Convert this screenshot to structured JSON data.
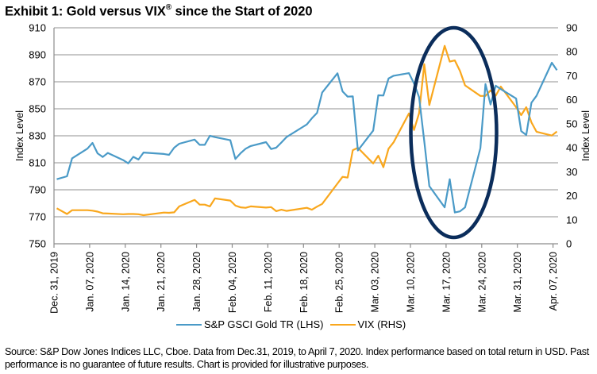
{
  "title": {
    "text": "Exhibit 1: Gold versus VIX",
    "mark": "®",
    "suffix": " since the Start of 2020"
  },
  "footnote": "Source: S&P Dow Jones Indices LLC, Cboe. Data from Dec.31, 2019, to April 7, 2020. Index performance based on total return in USD. Past performance is no guarantee of future results. Chart is provided for illustrative purposes.",
  "annotation": {
    "shape": "ellipse",
    "highlights": "Mar. 12 – Mar. 26, 2020",
    "color": "#0B2D5B"
  },
  "chart_data": {
    "type": "line",
    "title": "Exhibit 1: Gold versus VIX® since the Start of 2020",
    "xlabel": "",
    "ylabel_left": "Index Level",
    "ylabel_right": "Index Level",
    "ylim_left": [
      750,
      910
    ],
    "yticks_left": [
      "910",
      "890",
      "870",
      "850",
      "830",
      "810",
      "790",
      "770",
      "750"
    ],
    "ylim_right": [
      0,
      90
    ],
    "yticks_right": [
      "90",
      "80",
      "70",
      "60",
      "50",
      "40",
      "30",
      "20",
      "10",
      "0"
    ],
    "xtick_labels": [
      "Dec. 31, 2019",
      "Jan. 07, 2020",
      "Jan. 14, 2020",
      "Jan. 21, 2020",
      "Jan. 28, 2020",
      "Feb. 04, 2020",
      "Feb. 11, 2020",
      "Feb. 18, 2020",
      "Feb. 25, 2020",
      "Mar. 03, 2020",
      "Mar. 10, 2020",
      "Mar. 17, 2020",
      "Mar. 24, 2020",
      "Mar. 31, 2020",
      "Apr. 07, 2020"
    ],
    "grid": "horizontal",
    "legend_position": "bottom",
    "x": [
      "2019-12-31",
      "2020-01-02",
      "2020-01-03",
      "2020-01-06",
      "2020-01-07",
      "2020-01-08",
      "2020-01-09",
      "2020-01-10",
      "2020-01-13",
      "2020-01-14",
      "2020-01-15",
      "2020-01-16",
      "2020-01-17",
      "2020-01-21",
      "2020-01-22",
      "2020-01-23",
      "2020-01-24",
      "2020-01-27",
      "2020-01-28",
      "2020-01-29",
      "2020-01-30",
      "2020-01-31",
      "2020-02-03",
      "2020-02-04",
      "2020-02-05",
      "2020-02-06",
      "2020-02-07",
      "2020-02-10",
      "2020-02-11",
      "2020-02-12",
      "2020-02-13",
      "2020-02-14",
      "2020-02-18",
      "2020-02-19",
      "2020-02-20",
      "2020-02-21",
      "2020-02-24",
      "2020-02-25",
      "2020-02-26",
      "2020-02-27",
      "2020-02-28",
      "2020-03-02",
      "2020-03-03",
      "2020-03-04",
      "2020-03-05",
      "2020-03-06",
      "2020-03-09",
      "2020-03-10",
      "2020-03-11",
      "2020-03-12",
      "2020-03-13",
      "2020-03-16",
      "2020-03-17",
      "2020-03-18",
      "2020-03-19",
      "2020-03-20",
      "2020-03-23",
      "2020-03-24",
      "2020-03-25",
      "2020-03-26",
      "2020-03-27",
      "2020-03-30",
      "2020-03-31",
      "2020-04-01",
      "2020-04-02",
      "2020-04-03",
      "2020-04-06",
      "2020-04-07"
    ],
    "series": [
      {
        "name": "S&P GSCI Gold TR (LHS)",
        "axis": "left",
        "color": "#4A9AC7",
        "values": [
          797.8,
          800.0,
          813.3,
          820.5,
          824.7,
          817.0,
          814.3,
          817.3,
          812.0,
          809.6,
          814.4,
          812.4,
          817.6,
          816.5,
          815.9,
          821.2,
          824.1,
          827.2,
          823.3,
          823.3,
          830.0,
          829.0,
          826.7,
          812.8,
          817.0,
          820.4,
          822.4,
          825.3,
          820.2,
          821.2,
          825.0,
          829.0,
          838.4,
          843.0,
          847.0,
          862.0,
          876.3,
          862.9,
          859.0,
          859.2,
          819.1,
          833.9,
          860.0,
          859.8,
          872.4,
          874.5,
          876.4,
          868.8,
          858.6,
          826.0,
          792.7,
          777.0,
          797.8,
          773.2,
          774.0,
          777.0,
          820.8,
          868.3,
          853.2,
          867.1,
          864.6,
          857.6,
          833.5,
          830.6,
          854.5,
          859.6,
          884.1,
          878.6
        ]
      },
      {
        "name": "VIX (RHS)",
        "axis": "right",
        "color": "#F9A71D",
        "values": [
          14.8,
          12.4,
          14.0,
          14.0,
          13.8,
          13.4,
          12.7,
          12.6,
          12.3,
          12.4,
          12.4,
          12.3,
          11.9,
          13.0,
          12.9,
          13.1,
          15.6,
          18.3,
          16.3,
          16.3,
          15.6,
          18.9,
          18.0,
          15.9,
          15.2,
          15.0,
          15.6,
          15.1,
          15.3,
          13.6,
          14.2,
          13.7,
          15.0,
          14.2,
          15.5,
          16.6,
          25.1,
          27.9,
          27.6,
          39.0,
          40.0,
          33.5,
          36.7,
          31.9,
          39.6,
          42.3,
          54.3,
          47.4,
          54.4,
          74.8,
          57.8,
          82.5,
          75.9,
          76.4,
          72.0,
          66.0,
          61.6,
          61.6,
          63.9,
          61.7,
          65.5,
          56.9,
          53.6,
          56.9,
          50.6,
          46.7,
          45.1,
          46.8
        ]
      }
    ]
  }
}
